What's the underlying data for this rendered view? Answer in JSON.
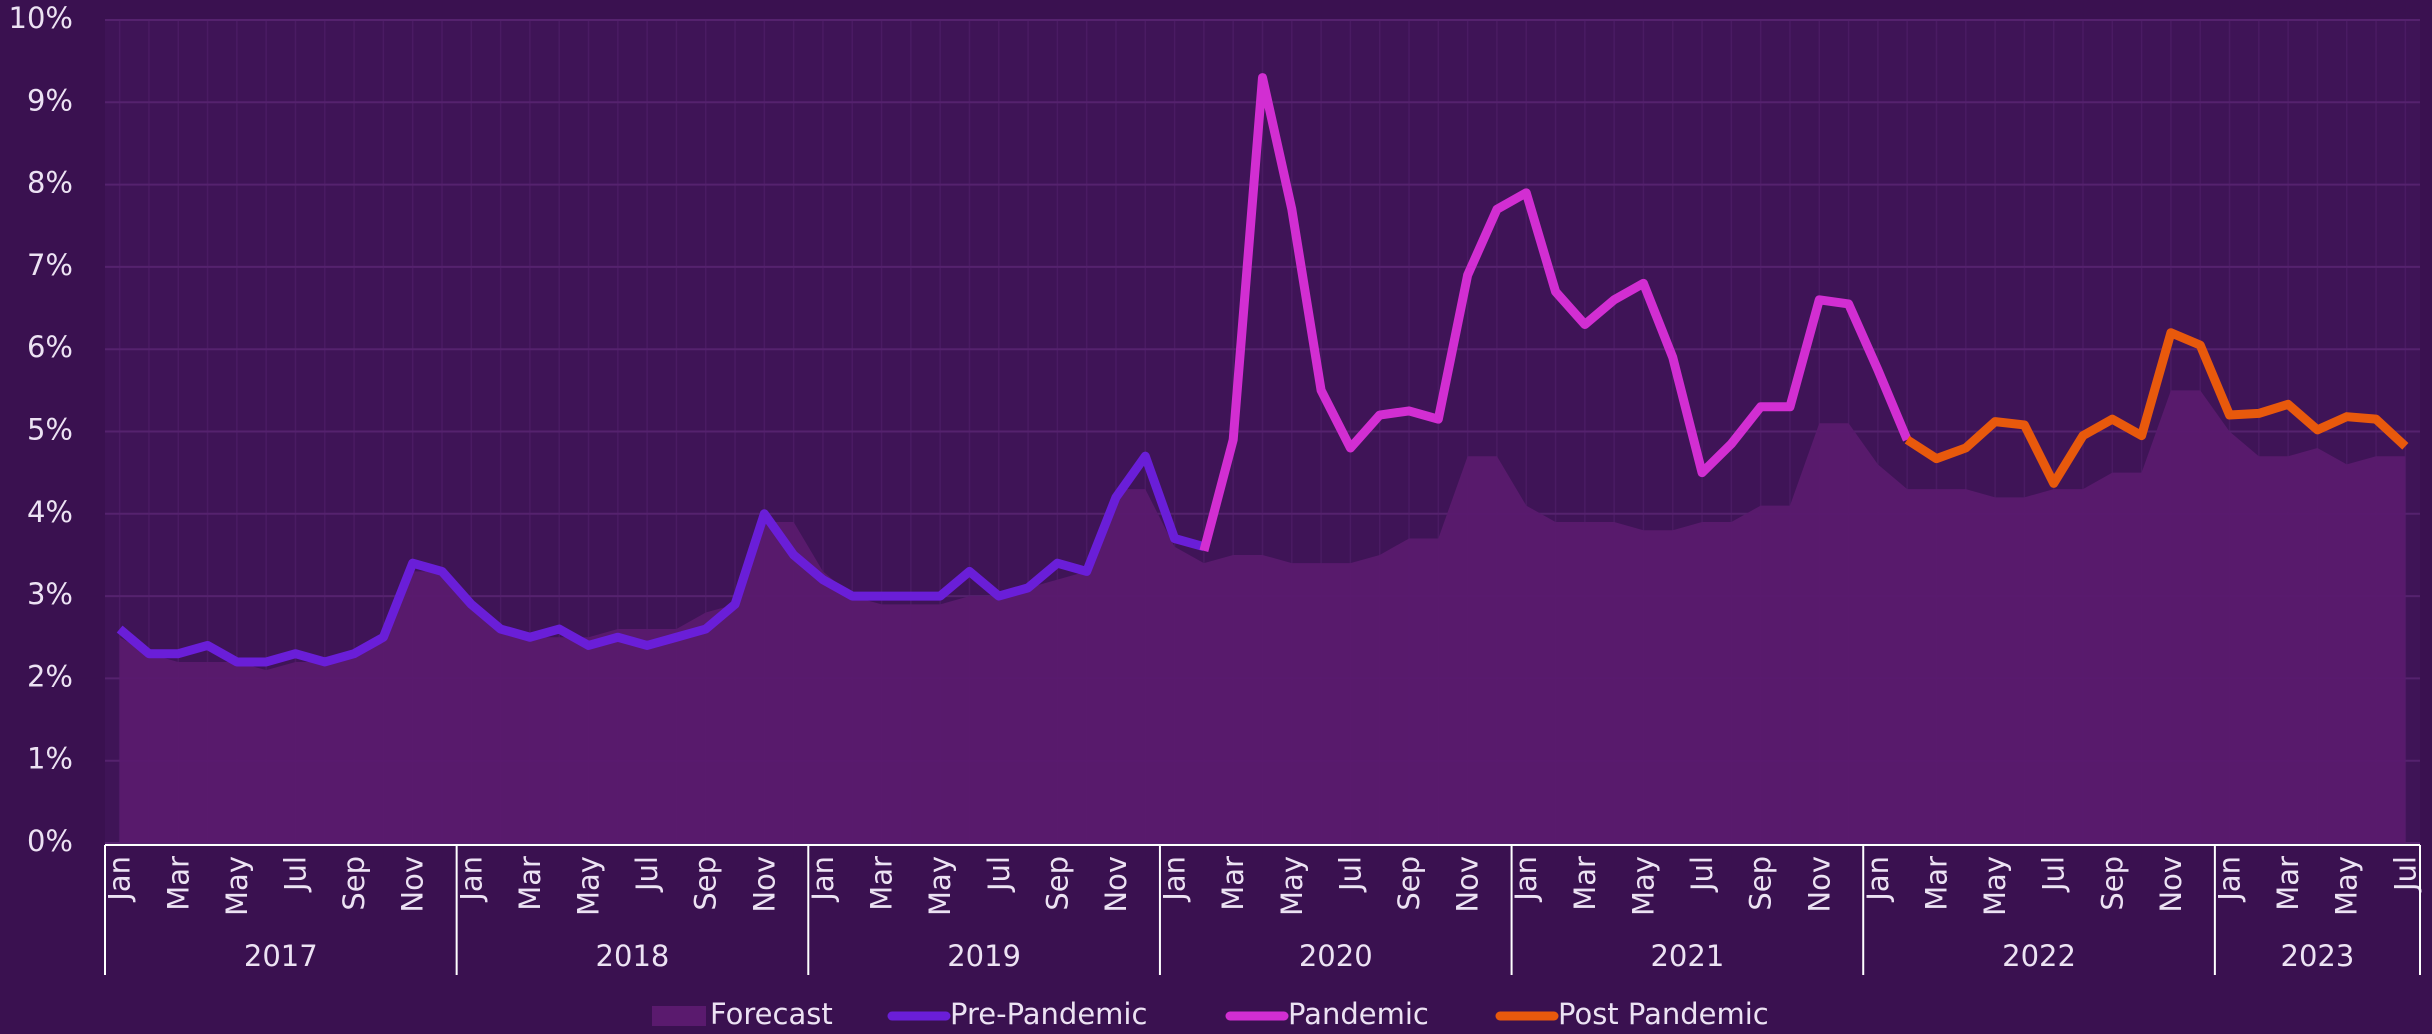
{
  "chart_data": {
    "type": "line",
    "categories": [
      "Jan",
      null,
      "Mar",
      null,
      "May",
      null,
      "Jul",
      null,
      "Sep",
      null,
      "Nov",
      null,
      "Jan",
      null,
      "Mar",
      null,
      "May",
      null,
      "Jul",
      null,
      "Sep",
      null,
      "Nov",
      null,
      "Jan",
      null,
      "Mar",
      null,
      "May",
      null,
      "Jul",
      null,
      "Sep",
      null,
      "Nov",
      null,
      "Jan",
      null,
      "Mar",
      null,
      "May",
      null,
      "Jul",
      null,
      "Sep",
      null,
      "Nov",
      null,
      "Jan",
      null,
      "Mar",
      null,
      "May",
      null,
      "Jul",
      null,
      "Sep",
      null,
      "Nov",
      null,
      "Jan",
      null,
      "Mar",
      null,
      "May",
      null,
      "Jul",
      null,
      "Sep",
      null,
      "Nov",
      null,
      "Jan",
      null,
      "Mar",
      null,
      "May",
      null,
      "Jul"
    ],
    "years": [
      "2017",
      "2018",
      "2019",
      "2020",
      "2021",
      "2022",
      "2023"
    ],
    "series": [
      {
        "name": "Forecast",
        "type": "area",
        "color": "#5a1a6e",
        "values": [
          2.5,
          2.3,
          2.2,
          2.2,
          2.2,
          2.1,
          2.2,
          2.2,
          2.3,
          2.5,
          3.3,
          3.3,
          2.9,
          2.6,
          2.5,
          2.5,
          2.5,
          2.6,
          2.6,
          2.6,
          2.8,
          2.9,
          3.9,
          3.9,
          3.3,
          3.0,
          2.9,
          2.9,
          2.9,
          3.0,
          3.0,
          3.1,
          3.2,
          3.3,
          4.3,
          4.3,
          3.6,
          3.4,
          3.5,
          3.5,
          3.4,
          3.4,
          3.4,
          3.5,
          3.7,
          3.7,
          4.7,
          4.7,
          4.1,
          3.9,
          3.9,
          3.9,
          3.8,
          3.8,
          3.9,
          3.9,
          4.1,
          4.1,
          5.1,
          5.1,
          4.6,
          4.3,
          4.3,
          4.3,
          4.2,
          4.2,
          4.3,
          4.3,
          4.5,
          4.5,
          5.5,
          5.5,
          5.0,
          4.7,
          4.7,
          4.8,
          4.6,
          4.7,
          4.7
        ]
      },
      {
        "name": "Pre-Pandemic",
        "type": "line",
        "color": "#6a1ed8",
        "values": [
          2.6,
          2.3,
          2.3,
          2.4,
          2.2,
          2.2,
          2.3,
          2.2,
          2.3,
          2.5,
          3.4,
          3.3,
          2.9,
          2.6,
          2.5,
          2.6,
          2.4,
          2.5,
          2.4,
          2.5,
          2.6,
          2.9,
          4.0,
          3.5,
          3.2,
          3.0,
          3.0,
          3.0,
          3.0,
          3.3,
          3.0,
          3.1,
          3.4,
          3.3,
          4.2,
          4.7,
          3.7,
          3.6,
          null,
          null,
          null,
          null,
          null,
          null,
          null,
          null,
          null,
          null,
          null,
          null,
          null,
          null,
          null,
          null,
          null,
          null,
          null,
          null,
          null,
          null,
          null,
          null,
          null,
          null,
          null,
          null,
          null,
          null,
          null,
          null,
          null,
          null,
          null,
          null,
          null,
          null,
          null,
          null,
          null
        ]
      },
      {
        "name": "Pandemic",
        "type": "line",
        "color": "#d22ed2",
        "values": [
          null,
          null,
          null,
          null,
          null,
          null,
          null,
          null,
          null,
          null,
          null,
          null,
          null,
          null,
          null,
          null,
          null,
          null,
          null,
          null,
          null,
          null,
          null,
          null,
          null,
          null,
          null,
          null,
          null,
          null,
          null,
          null,
          null,
          null,
          null,
          null,
          null,
          3.55,
          4.9,
          9.3,
          7.7,
          5.5,
          4.8,
          5.2,
          5.25,
          5.15,
          6.9,
          7.7,
          7.9,
          6.7,
          6.3,
          6.6,
          6.8,
          5.9,
          4.5,
          4.85,
          5.3,
          5.3,
          6.6,
          6.55,
          5.75,
          4.9,
          null,
          null,
          null,
          null,
          null,
          null,
          null,
          null,
          null,
          null,
          null,
          null,
          null,
          null,
          null,
          null,
          null
        ]
      },
      {
        "name": "Post Pandemic",
        "type": "line",
        "color": "#e8590c",
        "values": [
          null,
          null,
          null,
          null,
          null,
          null,
          null,
          null,
          null,
          null,
          null,
          null,
          null,
          null,
          null,
          null,
          null,
          null,
          null,
          null,
          null,
          null,
          null,
          null,
          null,
          null,
          null,
          null,
          null,
          null,
          null,
          null,
          null,
          null,
          null,
          null,
          null,
          null,
          null,
          null,
          null,
          null,
          null,
          null,
          null,
          null,
          null,
          null,
          null,
          null,
          null,
          null,
          null,
          null,
          null,
          null,
          null,
          null,
          null,
          null,
          null,
          4.9,
          4.67,
          4.8,
          5.12,
          5.08,
          4.37,
          4.95,
          5.15,
          4.95,
          6.2,
          6.05,
          5.2,
          5.22,
          5.33,
          5.02,
          5.18,
          5.15,
          4.82
        ]
      }
    ],
    "ylim": [
      0,
      10
    ],
    "yticks": [
      {
        "value": 0,
        "label": "0%"
      },
      {
        "value": 1,
        "label": "1%"
      },
      {
        "value": 2,
        "label": "2%"
      },
      {
        "value": 3,
        "label": "3%"
      },
      {
        "value": 4,
        "label": "4%"
      },
      {
        "value": 5,
        "label": "5%"
      },
      {
        "value": 6,
        "label": "6%"
      },
      {
        "value": 7,
        "label": "7%"
      },
      {
        "value": 8,
        "label": "8%"
      },
      {
        "value": 9,
        "label": "9%"
      },
      {
        "value": 10,
        "label": "10%"
      }
    ],
    "grid": true
  }
}
